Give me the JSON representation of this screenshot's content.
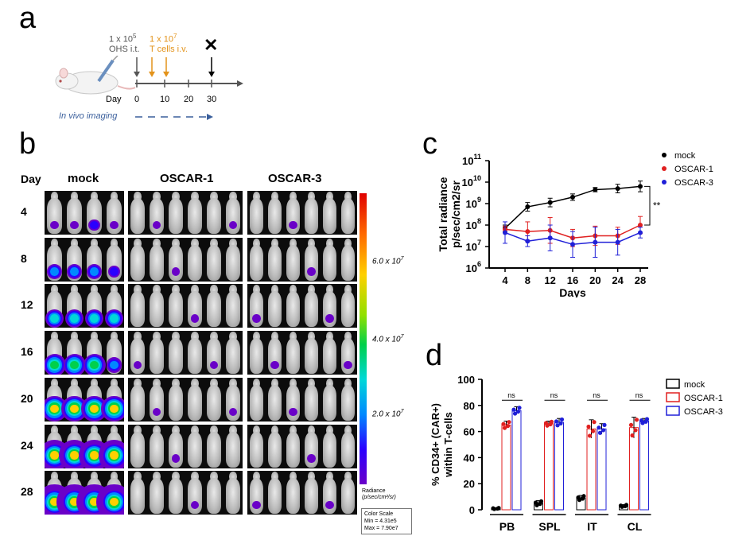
{
  "panel_letters": {
    "a": "a",
    "b": "b",
    "c": "c",
    "d": "d"
  },
  "timeline": {
    "dose1": {
      "prefix": "1 x 10",
      "exp": "5",
      "line2": "OHS i.t."
    },
    "dose2": {
      "prefix": "1 x 10",
      "exp": "7",
      "line2": "T cells i.v."
    },
    "end_mark": "✕",
    "axis_label": "Day",
    "ticks": [
      "0",
      "10",
      "20",
      "30"
    ],
    "imaging_label": "In vivo imaging",
    "colors": {
      "ohs": "#555555",
      "tcell": "#e3931b",
      "imaging": "#3a5f9c"
    }
  },
  "imaging": {
    "day_header": "Day",
    "groups": [
      "mock",
      "OSCAR-1",
      "OSCAR-3"
    ],
    "days": [
      "4",
      "8",
      "12",
      "16",
      "20",
      "24",
      "28"
    ],
    "colorbar": {
      "ticks": [
        {
          "base": "6.0 x 10",
          "exp": "7"
        },
        {
          "base": "4.0 x 10",
          "exp": "7"
        },
        {
          "base": "2.0 x 10",
          "exp": "7"
        }
      ],
      "unit_line1": "Radiance",
      "unit_line2": "(p/sec/cm²/sr)",
      "scale_title": "Color Scale",
      "scale_min": "Min = 4.31e5",
      "scale_max": "Max = 7.90e7"
    }
  },
  "chart_data": [
    {
      "type": "line",
      "title": "",
      "xlabel": "Days",
      "ylabel_line1": "Total radiance",
      "ylabel_line2": "p/sec/cm2/sr",
      "yscale": "log",
      "ylim_exp": [
        6,
        11
      ],
      "y_tick_base": "10",
      "y_tick_exps": [
        "6",
        "7",
        "8",
        "9",
        "10",
        "11"
      ],
      "x": [
        4,
        8,
        12,
        16,
        20,
        24,
        28
      ],
      "x_ticks": [
        "4",
        "8",
        "12",
        "16",
        "20",
        "24",
        "28"
      ],
      "series": [
        {
          "name": "mock",
          "color": "#000000",
          "log10_values": [
            7.85,
            8.85,
            9.05,
            9.3,
            9.65,
            9.7,
            9.8
          ],
          "log10_err": [
            0.15,
            0.2,
            0.2,
            0.15,
            0.1,
            0.2,
            0.25
          ]
        },
        {
          "name": "OSCAR-1",
          "color": "#e02020",
          "log10_values": [
            7.8,
            7.7,
            7.75,
            7.4,
            7.5,
            7.5,
            8.0
          ],
          "log10_err": [
            0.15,
            0.45,
            0.6,
            0.4,
            0.45,
            0.4,
            0.4
          ]
        },
        {
          "name": "OSCAR-3",
          "color": "#2020d8",
          "log10_values": [
            7.65,
            7.25,
            7.4,
            7.1,
            7.2,
            7.2,
            7.65
          ],
          "log10_err": [
            0.5,
            0.25,
            0.6,
            0.6,
            0.7,
            0.6,
            0.25
          ]
        }
      ],
      "significance": "**",
      "legend_position": "top-right"
    },
    {
      "type": "bar",
      "title": "",
      "xlabel": "",
      "ylabel_line1": "% CD34+ (CAR+)",
      "ylabel_line2": "within T-cells",
      "ylim": [
        0,
        100
      ],
      "y_ticks": [
        "0",
        "20",
        "40",
        "60",
        "80",
        "100"
      ],
      "categories": [
        "PB",
        "SPL",
        "IT",
        "CL"
      ],
      "series": [
        {
          "name": "mock",
          "color": "#000000",
          "values": [
            1,
            5,
            9,
            3
          ],
          "err": [
            0.5,
            2,
            2,
            1
          ]
        },
        {
          "name": "OSCAR-1",
          "color": "#e02020",
          "values": [
            65,
            66,
            62,
            63
          ],
          "err": [
            3,
            2,
            7,
            8
          ]
        },
        {
          "name": "OSCAR-3",
          "color": "#2020d8",
          "values": [
            76,
            67,
            62,
            68
          ],
          "err": [
            3,
            3,
            4,
            2
          ]
        }
      ],
      "significance_labels": [
        "ns",
        "ns",
        "ns",
        "ns"
      ],
      "legend_position": "top-right"
    }
  ]
}
